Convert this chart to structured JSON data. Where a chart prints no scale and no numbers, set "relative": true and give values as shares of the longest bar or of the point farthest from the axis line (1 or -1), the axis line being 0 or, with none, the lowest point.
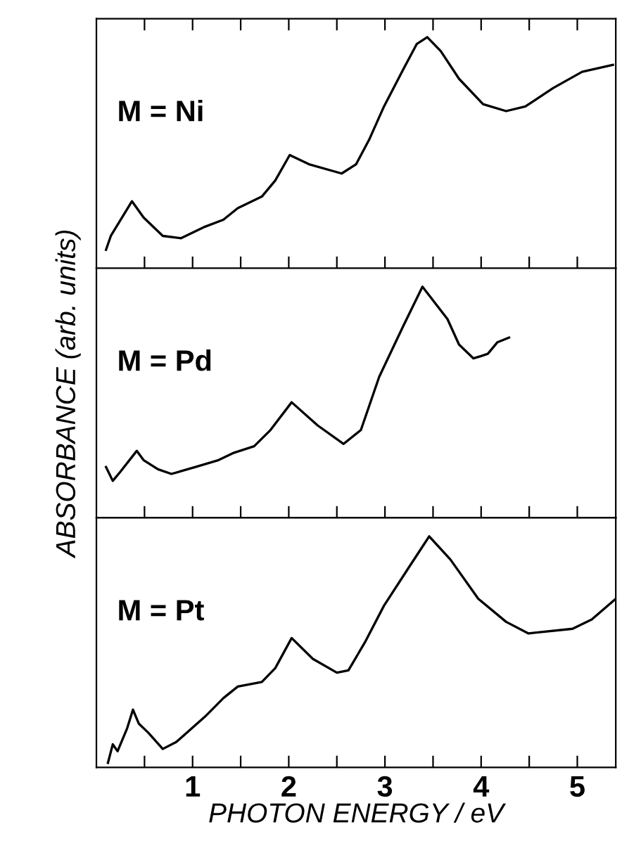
{
  "chart_data": [
    {
      "type": "line",
      "relative": true,
      "annotations": [
        "M = Ni"
      ],
      "tick_labels": false,
      "xlim": [
        0,
        5.4
      ],
      "xticks": [
        {
          "value": 0.5,
          "label": null
        },
        {
          "value": 1,
          "label": null
        },
        {
          "value": 1.5,
          "label": null
        },
        {
          "value": 2,
          "label": null
        },
        {
          "value": 2.5,
          "label": null
        },
        {
          "value": 3,
          "label": null
        },
        {
          "value": 3.5,
          "label": null
        },
        {
          "value": 4,
          "label": null
        },
        {
          "value": 4.5,
          "label": null
        },
        {
          "value": 5,
          "label": null
        }
      ],
      "series": [
        {
          "color": "#000000",
          "x": [
            0.1,
            0.15,
            0.37,
            0.49,
            0.69,
            0.88,
            1.13,
            1.32,
            1.47,
            1.72,
            1.86,
            2.01,
            2.21,
            2.55,
            2.7,
            2.84,
            2.99,
            3.19,
            3.33,
            3.44,
            3.58,
            3.77,
            4.02,
            4.26,
            4.46,
            4.75,
            5.05,
            5.37
          ],
          "values": [
            0.08,
            0.14,
            0.29,
            0.22,
            0.14,
            0.13,
            0.18,
            0.21,
            0.26,
            0.31,
            0.38,
            0.49,
            0.45,
            0.41,
            0.45,
            0.56,
            0.7,
            0.86,
            0.97,
            1.0,
            0.94,
            0.82,
            0.71,
            0.68,
            0.7,
            0.78,
            0.85,
            0.88
          ]
        }
      ]
    },
    {
      "type": "line",
      "relative": true,
      "annotations": [
        "M = Pd"
      ],
      "ylabel": "ABSORBANCE (arb. units)",
      "tick_labels": false,
      "xlim": [
        0,
        5.4
      ],
      "xticks": [
        {
          "value": 0.5,
          "label": null
        },
        {
          "value": 1,
          "label": null
        },
        {
          "value": 1.5,
          "label": null
        },
        {
          "value": 2,
          "label": null
        },
        {
          "value": 2.5,
          "label": null
        },
        {
          "value": 3,
          "label": null
        },
        {
          "value": 3.5,
          "label": null
        },
        {
          "value": 4,
          "label": null
        },
        {
          "value": 4.5,
          "label": null
        },
        {
          "value": 5,
          "label": null
        }
      ],
      "series": [
        {
          "color": "#000000",
          "x": [
            0.1,
            0.17,
            0.25,
            0.42,
            0.49,
            0.64,
            0.78,
            1.03,
            1.27,
            1.42,
            1.64,
            1.81,
            2.03,
            2.3,
            2.57,
            2.75,
            2.94,
            3.19,
            3.39,
            3.65,
            3.77,
            3.92,
            4.0,
            4.07,
            4.17,
            4.29
          ],
          "values": [
            0.22,
            0.16,
            0.2,
            0.29,
            0.25,
            0.21,
            0.19,
            0.22,
            0.25,
            0.28,
            0.31,
            0.38,
            0.5,
            0.4,
            0.32,
            0.38,
            0.61,
            0.83,
            1.0,
            0.86,
            0.75,
            0.69,
            0.7,
            0.71,
            0.76,
            0.78
          ]
        }
      ]
    },
    {
      "type": "line",
      "relative": true,
      "annotations": [
        "M = Pt"
      ],
      "xlabel": "PHOTON ENERGY / eV",
      "tick_labels": "x",
      "xlim": [
        0,
        5.4
      ],
      "xticks": [
        {
          "value": 0.5,
          "label": null
        },
        1,
        {
          "value": 1.5,
          "label": null
        },
        2,
        {
          "value": 2.5,
          "label": null
        },
        3,
        {
          "value": 3.5,
          "label": null
        },
        4,
        {
          "value": 4.5,
          "label": null
        },
        5
      ],
      "series": [
        {
          "color": "#000000",
          "x": [
            0.12,
            0.17,
            0.22,
            0.32,
            0.38,
            0.44,
            0.54,
            0.69,
            0.83,
            1.13,
            1.32,
            1.47,
            1.72,
            1.86,
            2.03,
            2.25,
            2.5,
            2.62,
            2.79,
            2.99,
            3.24,
            3.46,
            3.68,
            3.97,
            4.26,
            4.49,
            4.95,
            5.15,
            5.4
          ],
          "values": [
            0.02,
            0.1,
            0.07,
            0.17,
            0.25,
            0.19,
            0.15,
            0.08,
            0.11,
            0.22,
            0.3,
            0.35,
            0.37,
            0.43,
            0.56,
            0.47,
            0.41,
            0.42,
            0.54,
            0.7,
            0.86,
            1.0,
            0.9,
            0.73,
            0.63,
            0.58,
            0.6,
            0.64,
            0.73
          ]
        }
      ]
    }
  ]
}
